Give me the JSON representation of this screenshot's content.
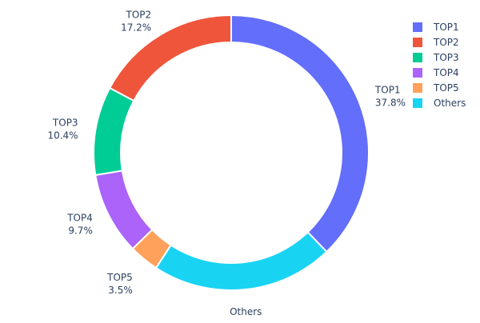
{
  "chart_data": {
    "type": "pie",
    "hole": true,
    "labels": [
      "TOP1",
      "TOP2",
      "TOP3",
      "TOP4",
      "TOP5",
      "Others"
    ],
    "values": [
      37.8,
      17.2,
      10.4,
      9.7,
      3.5,
      21.4
    ],
    "value_labels": [
      "37.8%",
      "17.2%",
      "10.4%",
      "9.7%",
      "3.5%",
      "21.4%"
    ],
    "colors": [
      "#636efa",
      "#ef553b",
      "#00cc96",
      "#ab63fa",
      "#ffa15a",
      "#19d3f3"
    ],
    "slice_order_clockwise_from_top": [
      "TOP1",
      "Others",
      "TOP5",
      "TOP4",
      "TOP3",
      "TOP2"
    ],
    "legend_position": "top-right",
    "text_color": "#2a3f5f"
  }
}
